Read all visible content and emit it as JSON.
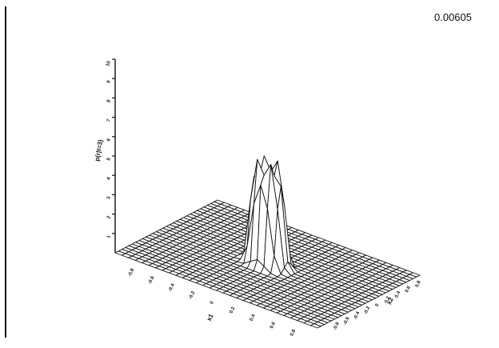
{
  "corner_label": "0.00605",
  "chart_data": {
    "type": "surface",
    "title": "",
    "xlabel": "x1",
    "ylabel": "x2",
    "zlabel": "p(r|t=3)",
    "xlim": [
      -1,
      1
    ],
    "ylim": [
      -1,
      1
    ],
    "zlim": [
      0,
      10
    ],
    "x_ticks": [
      "-0.8",
      "-0.6",
      "-0.4",
      "-0.2",
      "0",
      "0.2",
      "0.4",
      "0.6",
      "0.8"
    ],
    "y_ticks": [
      "-0.8",
      "-0.6",
      "-0.4",
      "-0.2",
      "0",
      "0.2",
      "0.4",
      "0.6",
      "0.8"
    ],
    "z_ticks": [
      "1",
      "2",
      "3",
      "4",
      "5",
      "6",
      "7",
      "8",
      "9",
      "10"
    ],
    "grid_size": 31,
    "surface": "crater-shaped peak centred at origin",
    "peak_center": [
      0,
      0
    ],
    "ring_radius": 0.11,
    "peak_height": 5.0,
    "crater_depth": 0.7,
    "peak_width": 0.06
  }
}
